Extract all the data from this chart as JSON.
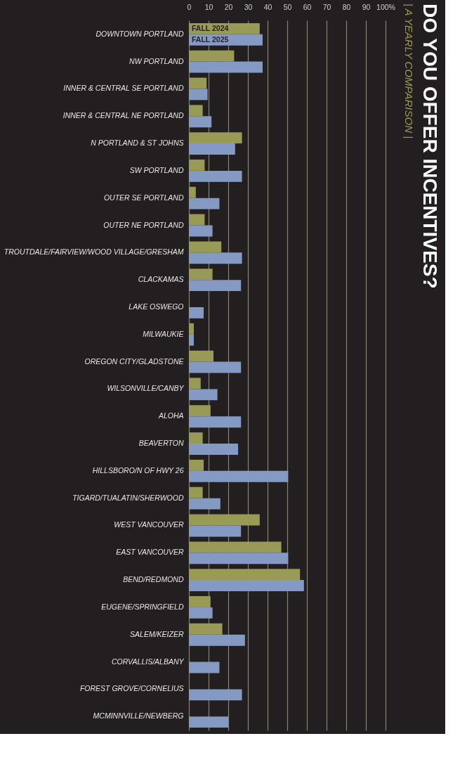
{
  "chart_data": {
    "type": "bar",
    "orientation": "horizontal",
    "title": "DO YOU OFFER INCENTIVES?",
    "subtitle": "| A YEARLY COMPARISON |",
    "categories": [
      "DOWNTOWN PORTLAND",
      "NW PORTLAND",
      "INNER & CENTRAL SE PORTLAND",
      "INNER & CENTRAL NE PORTLAND",
      "N PORTLAND & ST JOHNS",
      "SW PORTLAND",
      "OUTER SE PORTLAND",
      "OUTER NE PORTLAND",
      "TROUTDALE/FAIRVIEW/WOOD VILLAGE/GRESHAM",
      "CLACKAMAS",
      "LAKE OSWEGO",
      "MILWAUKIE",
      "OREGON CITY/GLADSTONE",
      "WILSONVILLE/CANBY",
      "ALOHA",
      "BEAVERTON",
      "HILLSBORO/N OF HWY  26",
      "TIGARD/TUALATIN/SHERWOOD",
      "WEST VANCOUVER",
      "EAST VANCOUVER",
      "BEND/REDMOND",
      "EUGENE/SPRINGFIELD",
      "SALEM/KEIZER",
      "CORVALLIS/ALBANY",
      "FOREST GROVE/CORNELIUS",
      "MCMINNVILLE/NEWBERG"
    ],
    "series": [
      {
        "name": "FALL 2024",
        "color": "#999a55",
        "values": [
          36,
          23,
          9,
          7,
          27,
          8,
          3.5,
          8,
          16.5,
          12,
          0,
          2.5,
          12.5,
          6,
          11,
          7,
          7.5,
          7,
          36,
          47,
          56.5,
          11,
          17,
          0,
          0,
          0
        ]
      },
      {
        "name": "FALL 2025",
        "color": "#859ac2",
        "values": [
          37.5,
          37.5,
          9.5,
          11.5,
          23.5,
          27,
          15.5,
          12,
          27,
          26.5,
          7.5,
          2.5,
          26.5,
          14.5,
          26.5,
          25,
          50.5,
          16,
          26.5,
          50.5,
          58.5,
          12,
          28.5,
          15.5,
          27,
          20
        ]
      }
    ],
    "xlim": [
      0,
      100
    ],
    "xticks": [
      0,
      10,
      20,
      30,
      40,
      50,
      60,
      70,
      80,
      90,
      {
        "value": 100,
        "label": "100%"
      }
    ],
    "grid": "x"
  }
}
